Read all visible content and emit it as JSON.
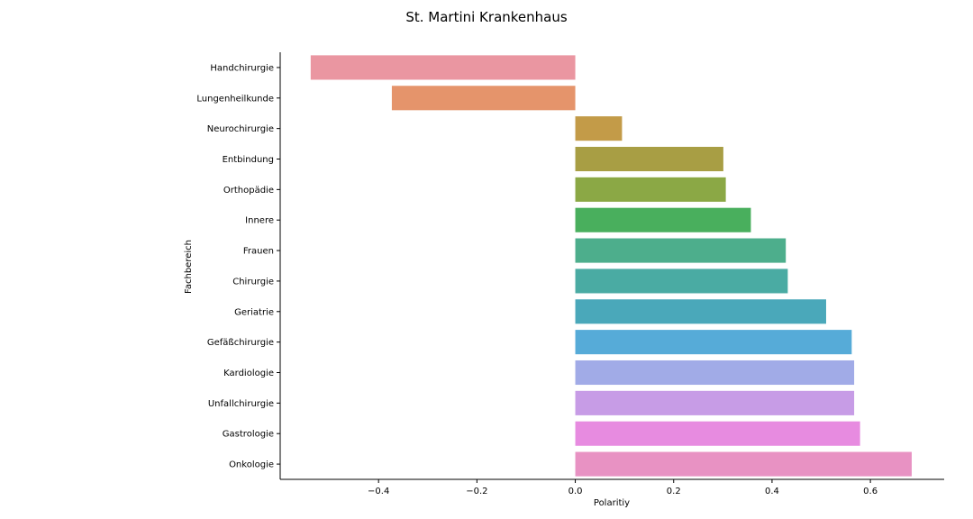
{
  "chart_data": {
    "type": "bar",
    "orientation": "horizontal",
    "title": "St. Martini Krankenhaus",
    "xlabel": "Polaritiy",
    "ylabel": "Fachbereich",
    "categories": [
      "Handchirurgie",
      "Lungenheilkunde",
      "Neurochirurgie",
      "Entbindung",
      "Orthopädie",
      "Innere",
      "Frauen",
      "Chirurgie",
      "Geriatrie",
      "Gefäßchirurgie",
      "Kardiologie",
      "Unfallchirurgie",
      "Gastrologie",
      "Onkologie"
    ],
    "values": [
      -0.538,
      -0.373,
      0.095,
      0.301,
      0.306,
      0.357,
      0.428,
      0.432,
      0.51,
      0.562,
      0.567,
      0.567,
      0.579,
      0.684
    ],
    "colors": [
      "#ea96a1",
      "#e5946b",
      "#c39b48",
      "#a89e44",
      "#8ba845",
      "#49af5d",
      "#4dae8c",
      "#4aaba3",
      "#4aa8ba",
      "#56abd8",
      "#a1abe7",
      "#c79ce6",
      "#e78be0",
      "#e892c3"
    ],
    "xlim": [
      -0.6,
      0.75
    ],
    "xticks": [
      -0.4,
      -0.2,
      0.0,
      0.2,
      0.4,
      0.6
    ],
    "xtick_labels": [
      "−0.4",
      "−0.2",
      "0.0",
      "0.2",
      "0.4",
      "0.6"
    ],
    "grid": false,
    "legend": "none"
  }
}
